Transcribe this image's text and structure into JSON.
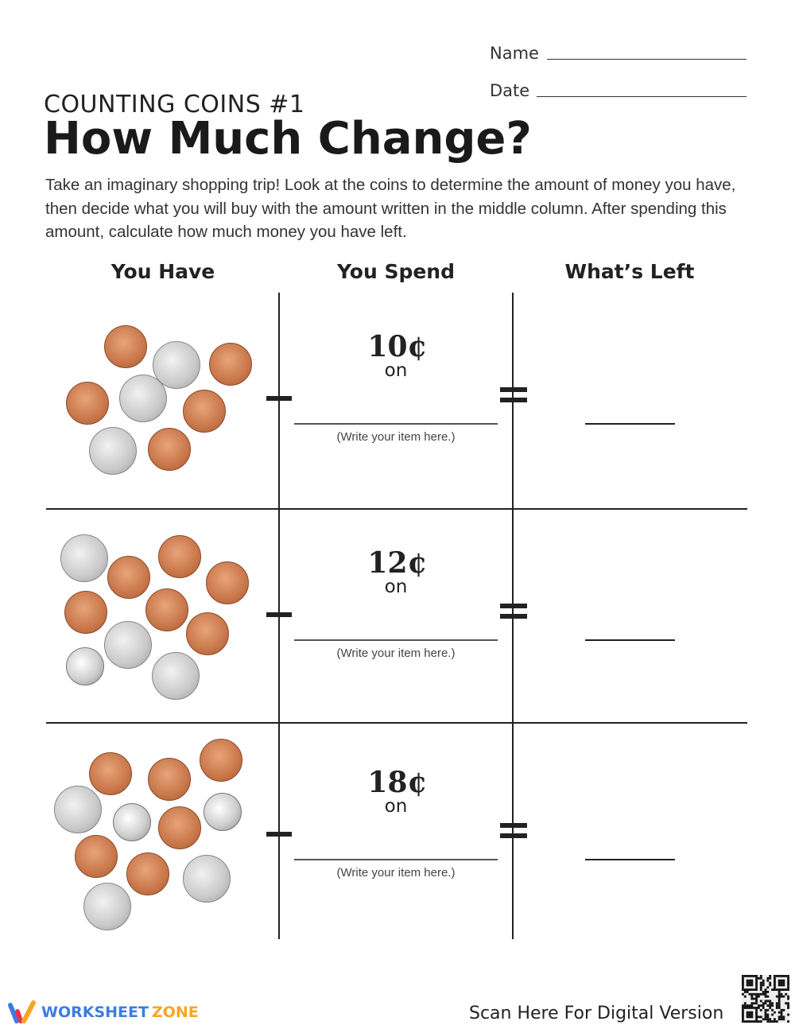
{
  "header": {
    "name_label": "Name",
    "date_label": "Date",
    "subtitle": "COUNTING COINS #1",
    "title": "How Much Change?",
    "intro": "Take an imaginary shopping trip! Look at the coins to determine the amount of money you have, then decide what you will buy with the amount written in the middle column. After spending this amount, calculate how much money you have left."
  },
  "columns": [
    "You Have",
    "You Spend",
    "What’s Left"
  ],
  "rows": [
    {
      "amount": "10¢",
      "on": "on",
      "hint": "(Write your item here.)",
      "coins": [
        "penny",
        "nickel",
        "penny",
        "penny",
        "nickel",
        "penny",
        "nickel",
        "penny"
      ]
    },
    {
      "amount": "12¢",
      "on": "on",
      "hint": "(Write your item here.)",
      "coins": [
        "nickel",
        "penny",
        "penny",
        "penny",
        "penny",
        "penny",
        "penny",
        "nickel",
        "dime",
        "nickel"
      ]
    },
    {
      "amount": "18¢",
      "on": "on",
      "hint": "(Write your item here.)",
      "coins": [
        "penny",
        "penny",
        "penny",
        "nickel",
        "dime",
        "penny",
        "dime",
        "penny",
        "penny",
        "nickel",
        "nickel"
      ]
    }
  ],
  "footer": {
    "logo_a": "WORKSHEET",
    "logo_b": "ZONE",
    "scan": "Scan Here For Digital Version"
  },
  "colors": {
    "logo_blue": "#3b7de0",
    "logo_orange": "#f5a623",
    "logo_red": "#e8344e"
  }
}
